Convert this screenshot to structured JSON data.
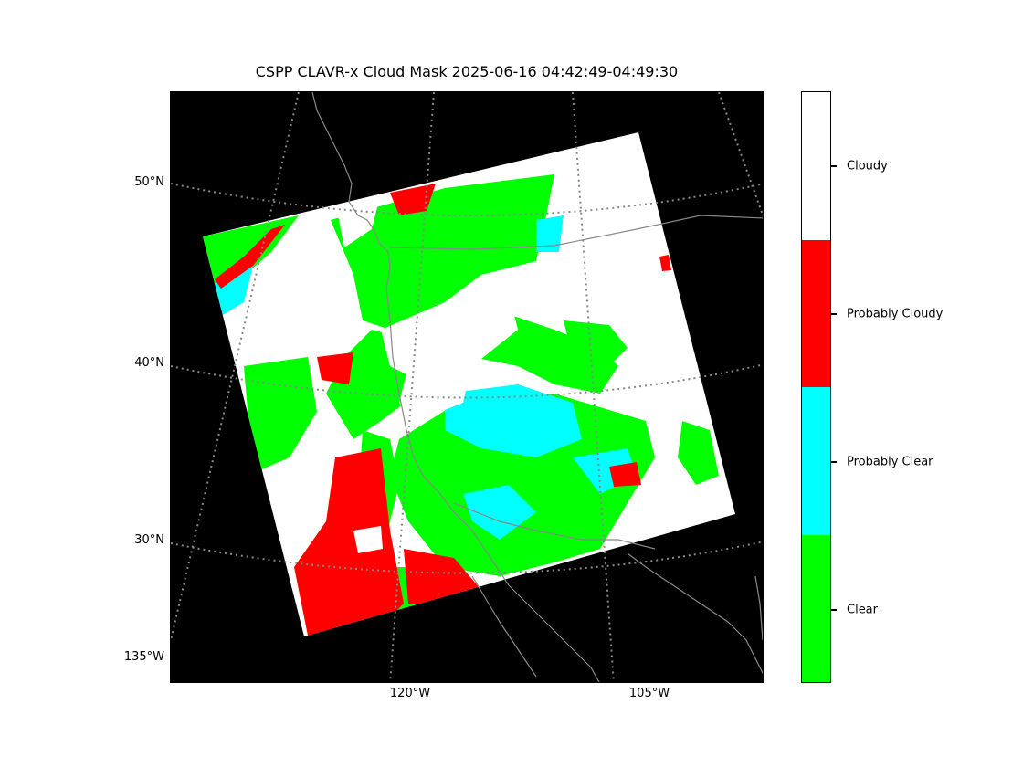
{
  "title": "CSPP CLAVR-x Cloud Mask 2025-06-16 04:42:49-04:49:30",
  "map": {
    "background_color": "#000000",
    "graticule_color": "#888888",
    "coastline_color": "#888888",
    "latitude_labels": [
      "50°N",
      "40°N",
      "30°N"
    ],
    "longitude_labels": [
      "135°W",
      "120°W",
      "105°W"
    ]
  },
  "colorbar": {
    "categories": [
      {
        "label": "Cloudy",
        "color": "#ffffff"
      },
      {
        "label": "Probably Cloudy",
        "color": "#ff0000"
      },
      {
        "label": "Probably Clear",
        "color": "#00ffff"
      },
      {
        "label": "Clear",
        "color": "#00ff00"
      }
    ]
  }
}
